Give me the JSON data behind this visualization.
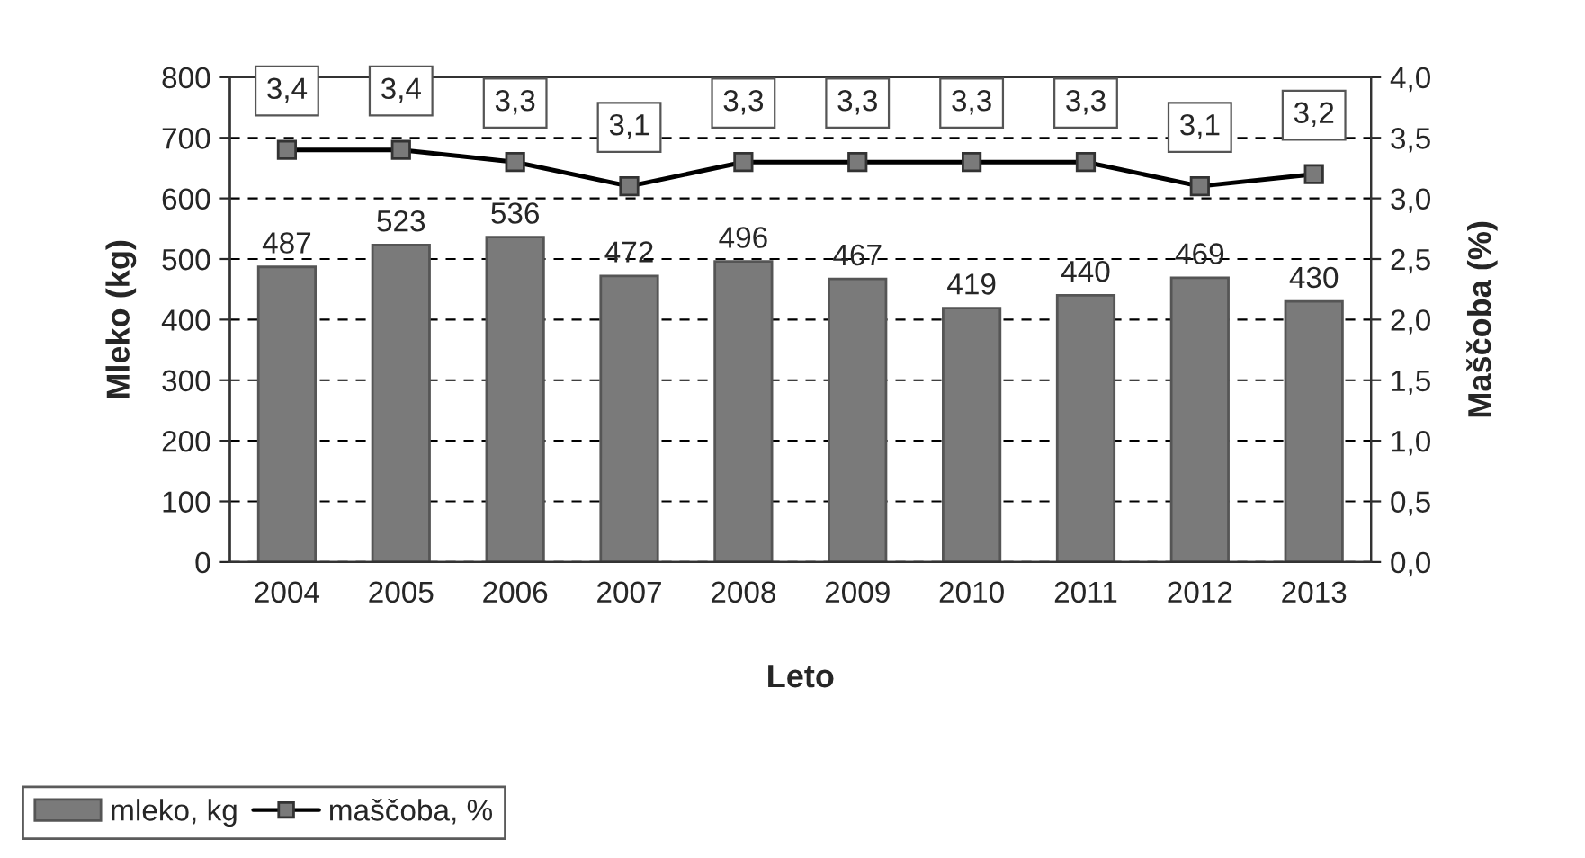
{
  "chart_data": {
    "type": "bar",
    "xlabel": "Leto",
    "ylabel": "Mleko (kg)",
    "y2label": "Maščoba (%)",
    "categories": [
      "2004",
      "2005",
      "2006",
      "2007",
      "2008",
      "2009",
      "2010",
      "2011",
      "2012",
      "2013"
    ],
    "series": [
      {
        "name": "mleko, kg",
        "color": "#7a7a7a",
        "values": [
          487,
          523,
          536,
          472,
          496,
          467,
          419,
          440,
          469,
          430
        ],
        "value_labels": [
          "487",
          "523",
          "536",
          "472",
          "496",
          "467",
          "419",
          "440",
          "469",
          "430"
        ]
      },
      {
        "name": "maščoba, %",
        "type": "line",
        "axis": "y2",
        "color": "#000000",
        "marker": "square",
        "values": [
          3.4,
          3.4,
          3.3,
          3.1,
          3.3,
          3.3,
          3.3,
          3.3,
          3.1,
          3.2
        ],
        "value_labels": [
          "3,4",
          "3,4",
          "3,3",
          "3,1",
          "3,3",
          "3,3",
          "3,3",
          "3,3",
          "3,1",
          "3,2"
        ]
      }
    ],
    "ylim": [
      0,
      800
    ],
    "yticks": [
      0,
      100,
      200,
      300,
      400,
      500,
      600,
      700,
      800
    ],
    "y2lim": [
      0,
      4
    ],
    "y2ticks": [
      {
        "value": 0,
        "label": "0,0"
      },
      {
        "value": 0.5,
        "label": "0,5"
      },
      {
        "value": 1,
        "label": "1,0"
      },
      {
        "value": 1.5,
        "label": "1,5"
      },
      {
        "value": 2,
        "label": "2,0"
      },
      {
        "value": 2.5,
        "label": "2,5"
      },
      {
        "value": 3,
        "label": "3,0"
      },
      {
        "value": 3.5,
        "label": "3,5"
      },
      {
        "value": 4,
        "label": "4,0"
      }
    ],
    "grid": "y",
    "legend": "bottom left"
  }
}
